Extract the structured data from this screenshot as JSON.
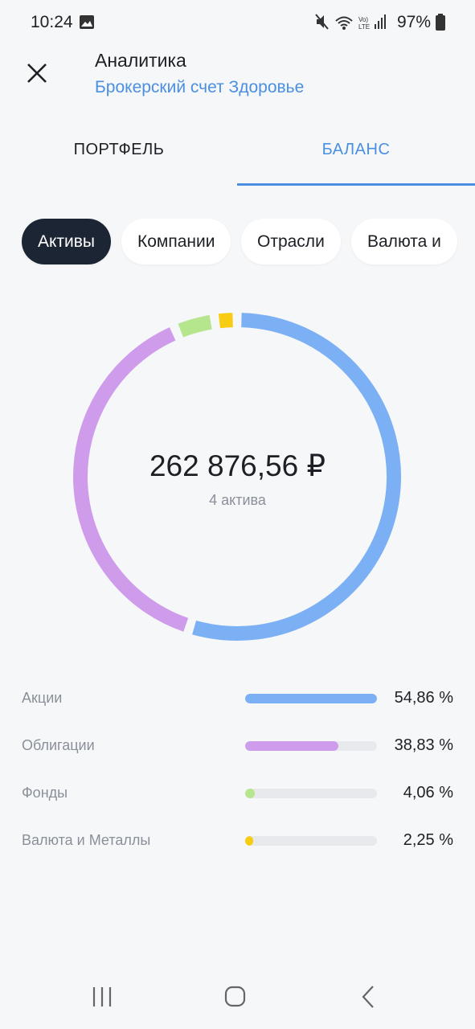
{
  "status_bar": {
    "time": "10:24",
    "battery": "97%"
  },
  "header": {
    "title": "Аналитика",
    "subtitle": "Брокерский счет Здоровье"
  },
  "tabs": [
    {
      "label": "ПОРТФЕЛЬ",
      "active": false
    },
    {
      "label": "БАЛАНС",
      "active": true
    }
  ],
  "chips": [
    {
      "label": "Активы",
      "active": true
    },
    {
      "label": "Компании",
      "active": false
    },
    {
      "label": "Отрасли",
      "active": false
    },
    {
      "label": "Валюта и",
      "active": false
    }
  ],
  "summary": {
    "total": "262 876,56 ₽",
    "count": "4 актива"
  },
  "allocation": [
    {
      "label": "Акции",
      "value": 54.86,
      "value_label": "54,86 %",
      "color": "#7cb0f5"
    },
    {
      "label": "Облигации",
      "value": 38.83,
      "value_label": "38,83 %",
      "color": "#cf9cec"
    },
    {
      "label": "Фонды",
      "value": 4.06,
      "value_label": "4,06 %",
      "color": "#b5e58c"
    },
    {
      "label": "Валюта и Металлы",
      "value": 2.25,
      "value_label": "2,25 %",
      "color": "#f7cc12"
    }
  ]
}
